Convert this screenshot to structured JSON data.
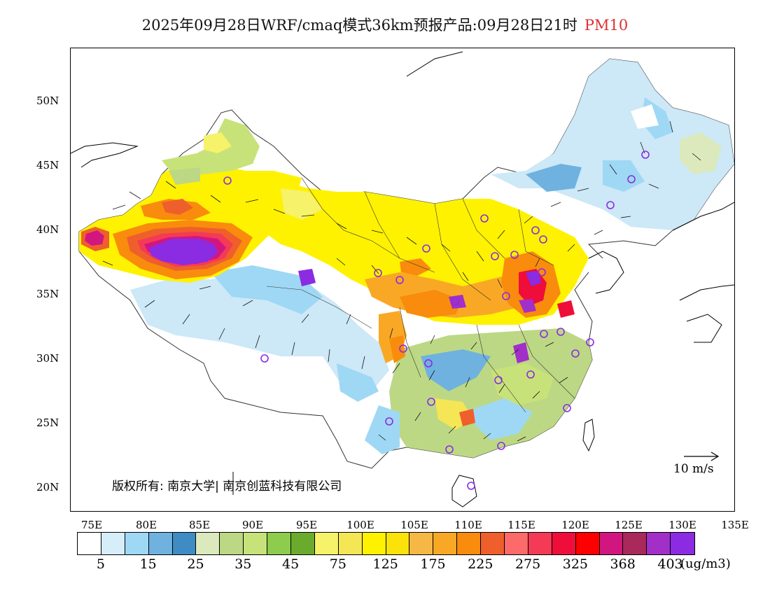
{
  "title": {
    "text": "2025年09月28日WRF/cmaq模式36km预报产品:09月28日21时",
    "pollutant": "PM10"
  },
  "lat_labels": [
    "50N",
    "45N",
    "40N",
    "35N",
    "30N",
    "25N",
    "20N"
  ],
  "lon_labels": [
    "75E",
    "80E",
    "85E",
    "90E",
    "95E",
    "100E",
    "105E",
    "110E",
    "115E",
    "120E",
    "125E",
    "130E",
    "135E"
  ],
  "copyright": "版权所有: 南京大学| 南京创蓝科技有限公司",
  "wind_scale": "10 m/s",
  "colorbar": {
    "colors": [
      "#ffffff",
      "#d6eefa",
      "#9fd8f4",
      "#6fb2e0",
      "#3f8cc4",
      "#dbe9bd",
      "#bcd885",
      "#c8e27a",
      "#8dcc4c",
      "#6aab2e",
      "#f6f26a",
      "#f4e655",
      "#fff200",
      "#fbe20a",
      "#f6b844",
      "#f9a826",
      "#f98c0c",
      "#ef5f2b",
      "#fc6a6a",
      "#f43a55",
      "#ef0d3a",
      "#ff0000",
      "#d1177f",
      "#a8295a",
      "#a12fc8",
      "#8b2be2"
    ],
    "tick_labels": [
      "5",
      "15",
      "25",
      "35",
      "45",
      "75",
      "125",
      "175",
      "225",
      "275",
      "325",
      "368",
      "403"
    ],
    "unit": "(ug/m3)"
  },
  "icon_names": [
    "city-marker-icon",
    "wind-arrow-icon"
  ]
}
